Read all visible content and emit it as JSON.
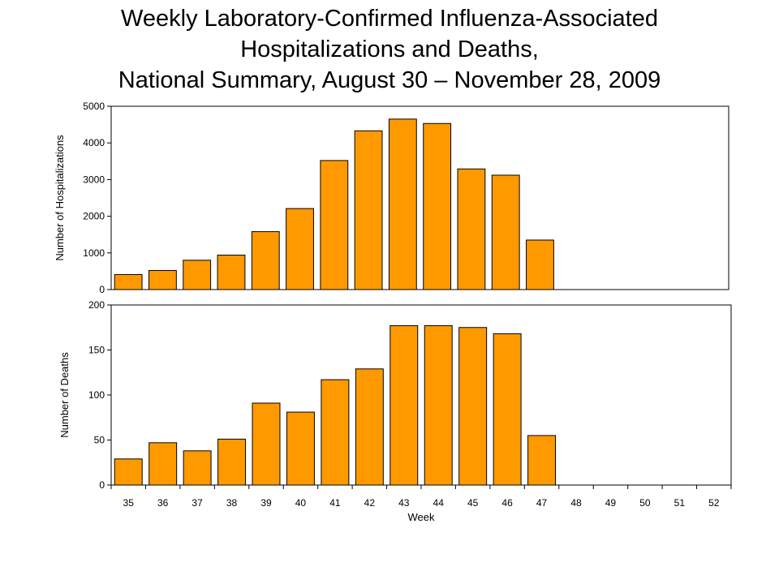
{
  "title_lines": [
    "Weekly Laboratory-Confirmed Influenza-Associated",
    "Hospitalizations and Deaths,",
    "National Summary, August 30 – November 28, 2009"
  ],
  "chart_data": [
    {
      "type": "bar",
      "ylabel": "Number of Hospitalizations",
      "xlabel": "Week",
      "categories": [
        "35",
        "36",
        "37",
        "38",
        "39",
        "40",
        "41",
        "42",
        "43",
        "44",
        "45",
        "46",
        "47",
        "48",
        "49",
        "50",
        "51",
        "52"
      ],
      "values": [
        410,
        520,
        800,
        940,
        1580,
        2210,
        3520,
        4330,
        4650,
        4530,
        3290,
        3120,
        1350,
        null,
        null,
        null,
        null,
        null
      ],
      "ylim": [
        0,
        5000
      ],
      "yticks": [
        "0",
        "1000",
        "2000",
        "3000",
        "4000",
        "5000"
      ],
      "bar_color": "#FF9900"
    },
    {
      "type": "bar",
      "ylabel": "Number of Deaths",
      "xlabel": "Week",
      "categories": [
        "35",
        "36",
        "37",
        "38",
        "39",
        "40",
        "41",
        "42",
        "43",
        "44",
        "45",
        "46",
        "47",
        "48",
        "49",
        "50",
        "51",
        "52"
      ],
      "values": [
        29,
        47,
        38,
        51,
        91,
        81,
        117,
        129,
        177,
        177,
        175,
        168,
        55,
        null,
        null,
        null,
        null,
        null
      ],
      "ylim": [
        0,
        200
      ],
      "yticks": [
        "0",
        "50",
        "100",
        "150",
        "200"
      ],
      "bar_color": "#FF9900"
    }
  ]
}
